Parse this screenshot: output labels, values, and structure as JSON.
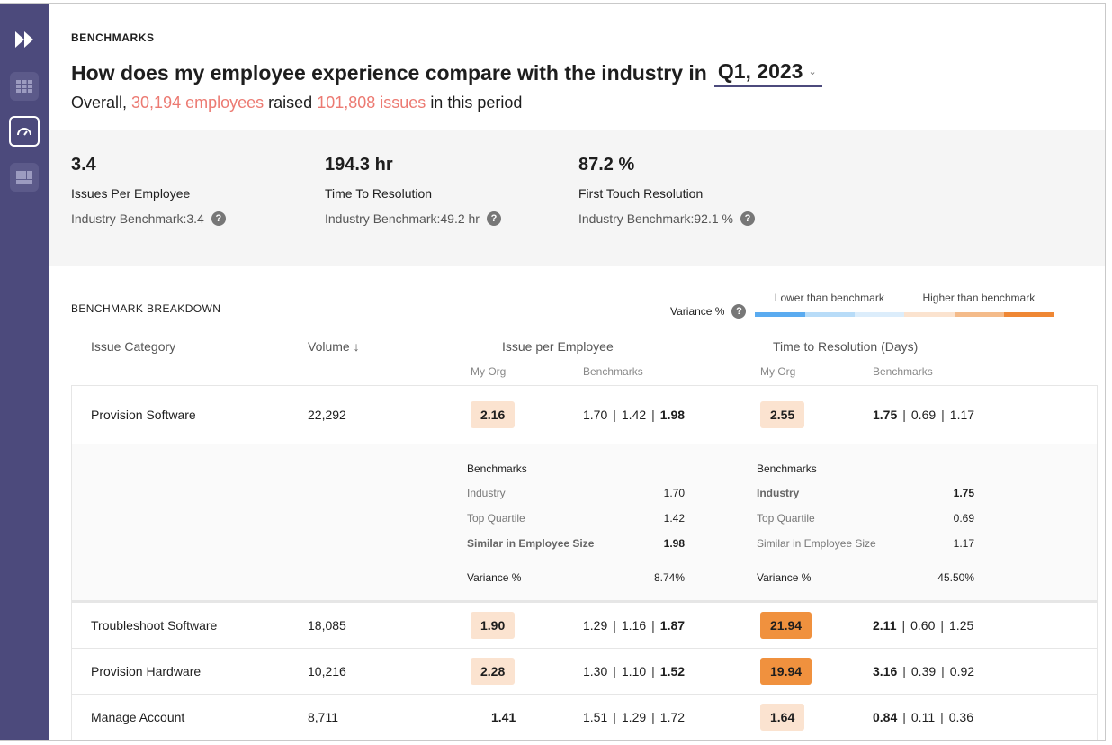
{
  "sidebar": {
    "items": [
      {
        "name": "fast-forward-icon"
      },
      {
        "name": "grid-icon"
      },
      {
        "name": "gauge-icon",
        "active": true
      },
      {
        "name": "dashboard-icon"
      }
    ]
  },
  "header": {
    "eyebrow": "BENCHMARKS",
    "title": "How does my employee experience compare with the industry in",
    "period": "Q1, 2023",
    "sub_prefix": "Overall,",
    "employees": "30,194 employees",
    "sub_mid": "raised",
    "issues": "101,808 issues",
    "sub_suffix": "in this period"
  },
  "kpis": [
    {
      "value": "3.4",
      "label": "Issues Per Employee",
      "benchmark": "Industry Benchmark:3.4"
    },
    {
      "value": "194.3 hr",
      "label": "Time To Resolution",
      "benchmark": "Industry Benchmark:49.2 hr"
    },
    {
      "value": "87.2 %",
      "label": "First Touch Resolution",
      "benchmark": "Industry Benchmark:92.1 %"
    }
  ],
  "breakdown": {
    "title": "BENCHMARK BREAKDOWN",
    "variance_label": "Variance %",
    "lower": "Lower than benchmark",
    "higher": "Higher than benchmark",
    "scale": [
      "#5aabf0",
      "#b8dcf8",
      "#dcedfb",
      "#fbe3cf",
      "#f4bb8a",
      "#ef8734"
    ],
    "columns": {
      "category": "Issue Category",
      "volume": "Volume ↓",
      "ipe": "Issue per Employee",
      "ttr": "Time to Resolution (Days)",
      "my_org": "My Org",
      "benchmarks": "Benchmarks"
    }
  },
  "rows": [
    {
      "category": "Provision Software",
      "volume": "22,292",
      "ipe": {
        "org": "2.16",
        "level": "light",
        "bench": [
          "1.70",
          "1.42",
          "1.98"
        ],
        "bold": 2
      },
      "ttr": {
        "org": "2.55",
        "level": "light",
        "bench": [
          "1.75",
          "0.69",
          "1.17"
        ],
        "bold": 0
      },
      "expanded": true
    },
    {
      "category": "Troubleshoot Software",
      "volume": "18,085",
      "ipe": {
        "org": "1.90",
        "level": "light",
        "bench": [
          "1.29",
          "1.16",
          "1.87"
        ],
        "bold": 2
      },
      "ttr": {
        "org": "21.94",
        "level": "strong",
        "bench": [
          "2.11",
          "0.60",
          "1.25"
        ],
        "bold": 0
      }
    },
    {
      "category": "Provision Hardware",
      "volume": "10,216",
      "ipe": {
        "org": "2.28",
        "level": "light",
        "bench": [
          "1.30",
          "1.10",
          "1.52"
        ],
        "bold": 2
      },
      "ttr": {
        "org": "19.94",
        "level": "strong",
        "bench": [
          "3.16",
          "0.39",
          "0.92"
        ],
        "bold": 0
      }
    },
    {
      "category": "Manage Account",
      "volume": "8,711",
      "ipe": {
        "org": "1.41",
        "level": "none",
        "bench": [
          "1.51",
          "1.29",
          "1.72"
        ],
        "bold": -1
      },
      "ttr": {
        "org": "1.64",
        "level": "light",
        "bench": [
          "0.84",
          "0.11",
          "0.36"
        ],
        "bold": 0
      }
    }
  ],
  "detail": {
    "ipe": {
      "title": "Benchmarks",
      "rows": [
        {
          "k": "Industry",
          "v": "1.70"
        },
        {
          "k": "Top Quartile",
          "v": "1.42"
        },
        {
          "k": "Similar in Employee Size",
          "v": "1.98",
          "bold": true
        }
      ],
      "variance_label": "Variance %",
      "variance": "8.74%"
    },
    "ttr": {
      "title": "Benchmarks",
      "rows": [
        {
          "k": "Industry",
          "v": "1.75",
          "bold": true
        },
        {
          "k": "Top Quartile",
          "v": "0.69"
        },
        {
          "k": "Similar in Employee Size",
          "v": "1.17"
        }
      ],
      "variance_label": "Variance %",
      "variance": "45.50%"
    }
  }
}
